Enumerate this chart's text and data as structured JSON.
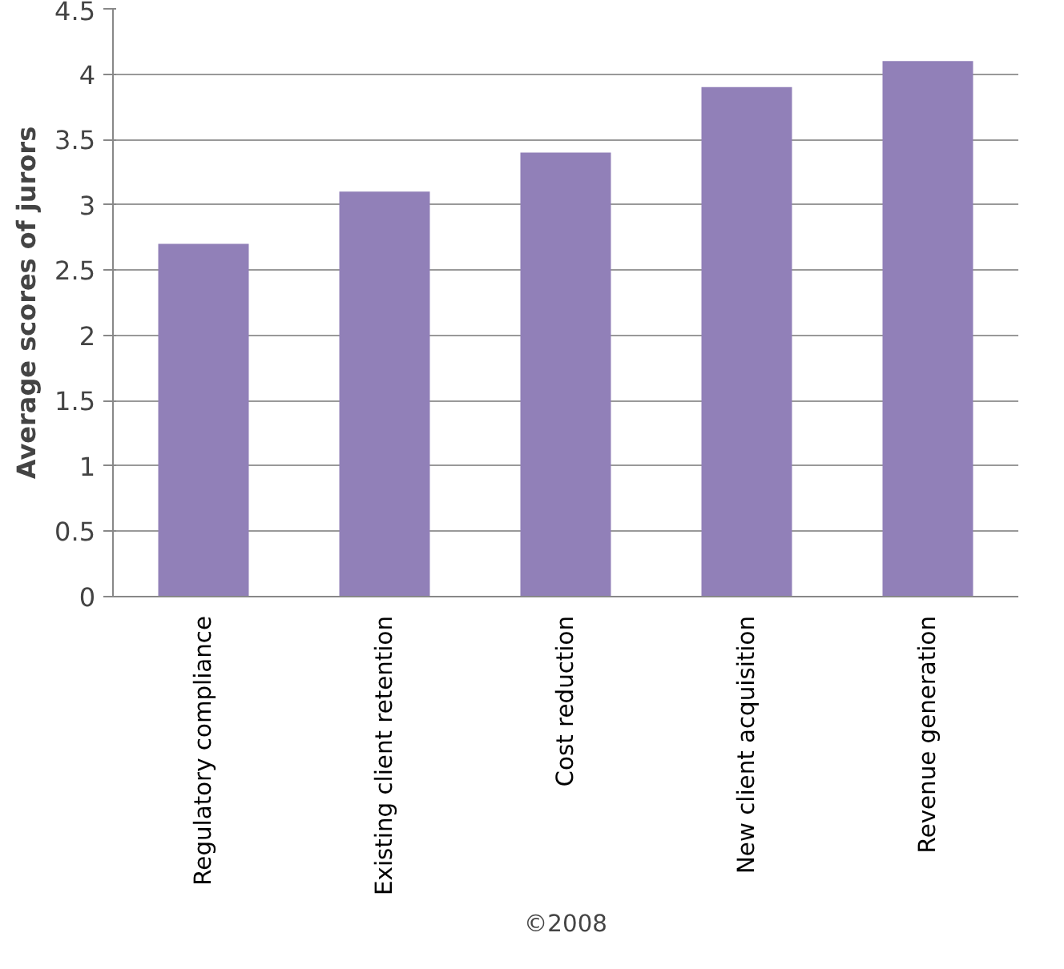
{
  "chart_data": {
    "type": "bar",
    "ylabel": "Average scores of jurors",
    "categories": [
      "Regulatory compliance",
      "Existing client retention",
      "Cost reduction",
      "New client acquisition",
      "Revenue generation"
    ],
    "values": [
      2.7,
      3.1,
      3.4,
      3.9,
      4.1
    ],
    "color": "#9180b8",
    "ylim": [
      0,
      4.5
    ],
    "yticks": [
      0,
      0.5,
      1,
      1.5,
      2,
      2.5,
      3,
      3.5,
      4,
      4.5
    ],
    "grid": "y",
    "annotations": [
      "©2008"
    ]
  }
}
